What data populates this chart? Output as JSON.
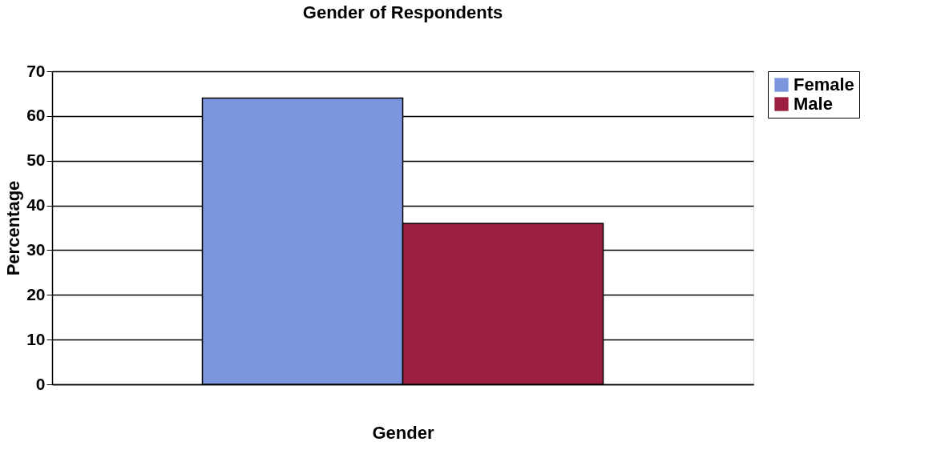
{
  "chart_data": {
    "type": "bar",
    "title": "Gender of Respondents",
    "xlabel": "Gender",
    "ylabel": "Percentage",
    "categories": [
      null
    ],
    "series": [
      {
        "name": "Female",
        "color": "#7b96dc",
        "values": [
          64
        ]
      },
      {
        "name": "Male",
        "color": "#9e2040",
        "values": [
          36
        ]
      }
    ],
    "ylim": [
      0,
      70
    ],
    "yticks": [
      0,
      10,
      20,
      30,
      40,
      50,
      60,
      70
    ],
    "grid": "y",
    "legend": "right",
    "tick_labels": "y"
  }
}
